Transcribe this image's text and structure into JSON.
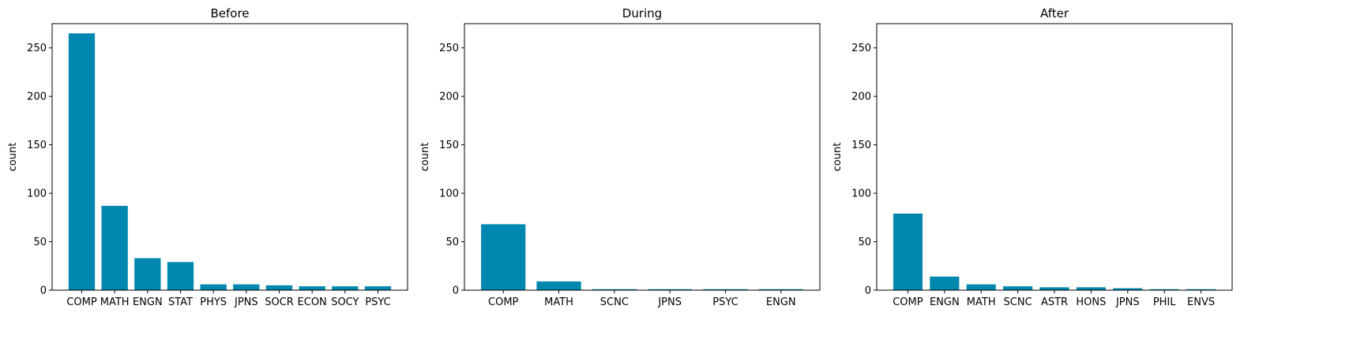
{
  "chart_data": [
    {
      "type": "bar",
      "title": "Before",
      "xlabel": "",
      "ylabel": "count",
      "ylim": [
        0,
        275
      ],
      "yticks": [
        0,
        50,
        100,
        150,
        200,
        250
      ],
      "categories": [
        "COMP",
        "MATH",
        "ENGN",
        "STAT",
        "PHYS",
        "JPNS",
        "SOCR",
        "ECON",
        "SOCY",
        "PSYC"
      ],
      "values": [
        265,
        87,
        33,
        29,
        6,
        6,
        5,
        4,
        4,
        4
      ],
      "color": "#0088b0"
    },
    {
      "type": "bar",
      "title": "During",
      "xlabel": "",
      "ylabel": "count",
      "ylim": [
        0,
        275
      ],
      "yticks": [
        0,
        50,
        100,
        150,
        200,
        250
      ],
      "categories": [
        "COMP",
        "MATH",
        "SCNC",
        "JPNS",
        "PSYC",
        "ENGN"
      ],
      "values": [
        68,
        9,
        1,
        1,
        1,
        1
      ],
      "color": "#0088b0"
    },
    {
      "type": "bar",
      "title": "After",
      "xlabel": "",
      "ylabel": "count",
      "ylim": [
        0,
        275
      ],
      "yticks": [
        0,
        50,
        100,
        150,
        200,
        250
      ],
      "categories": [
        "COMP",
        "ENGN",
        "MATH",
        "SCNC",
        "ASTR",
        "HONS",
        "JPNS",
        "PHIL",
        "ENVS"
      ],
      "values": [
        79,
        14,
        6,
        4,
        3,
        3,
        2,
        1,
        1
      ],
      "color": "#0088b0"
    }
  ]
}
